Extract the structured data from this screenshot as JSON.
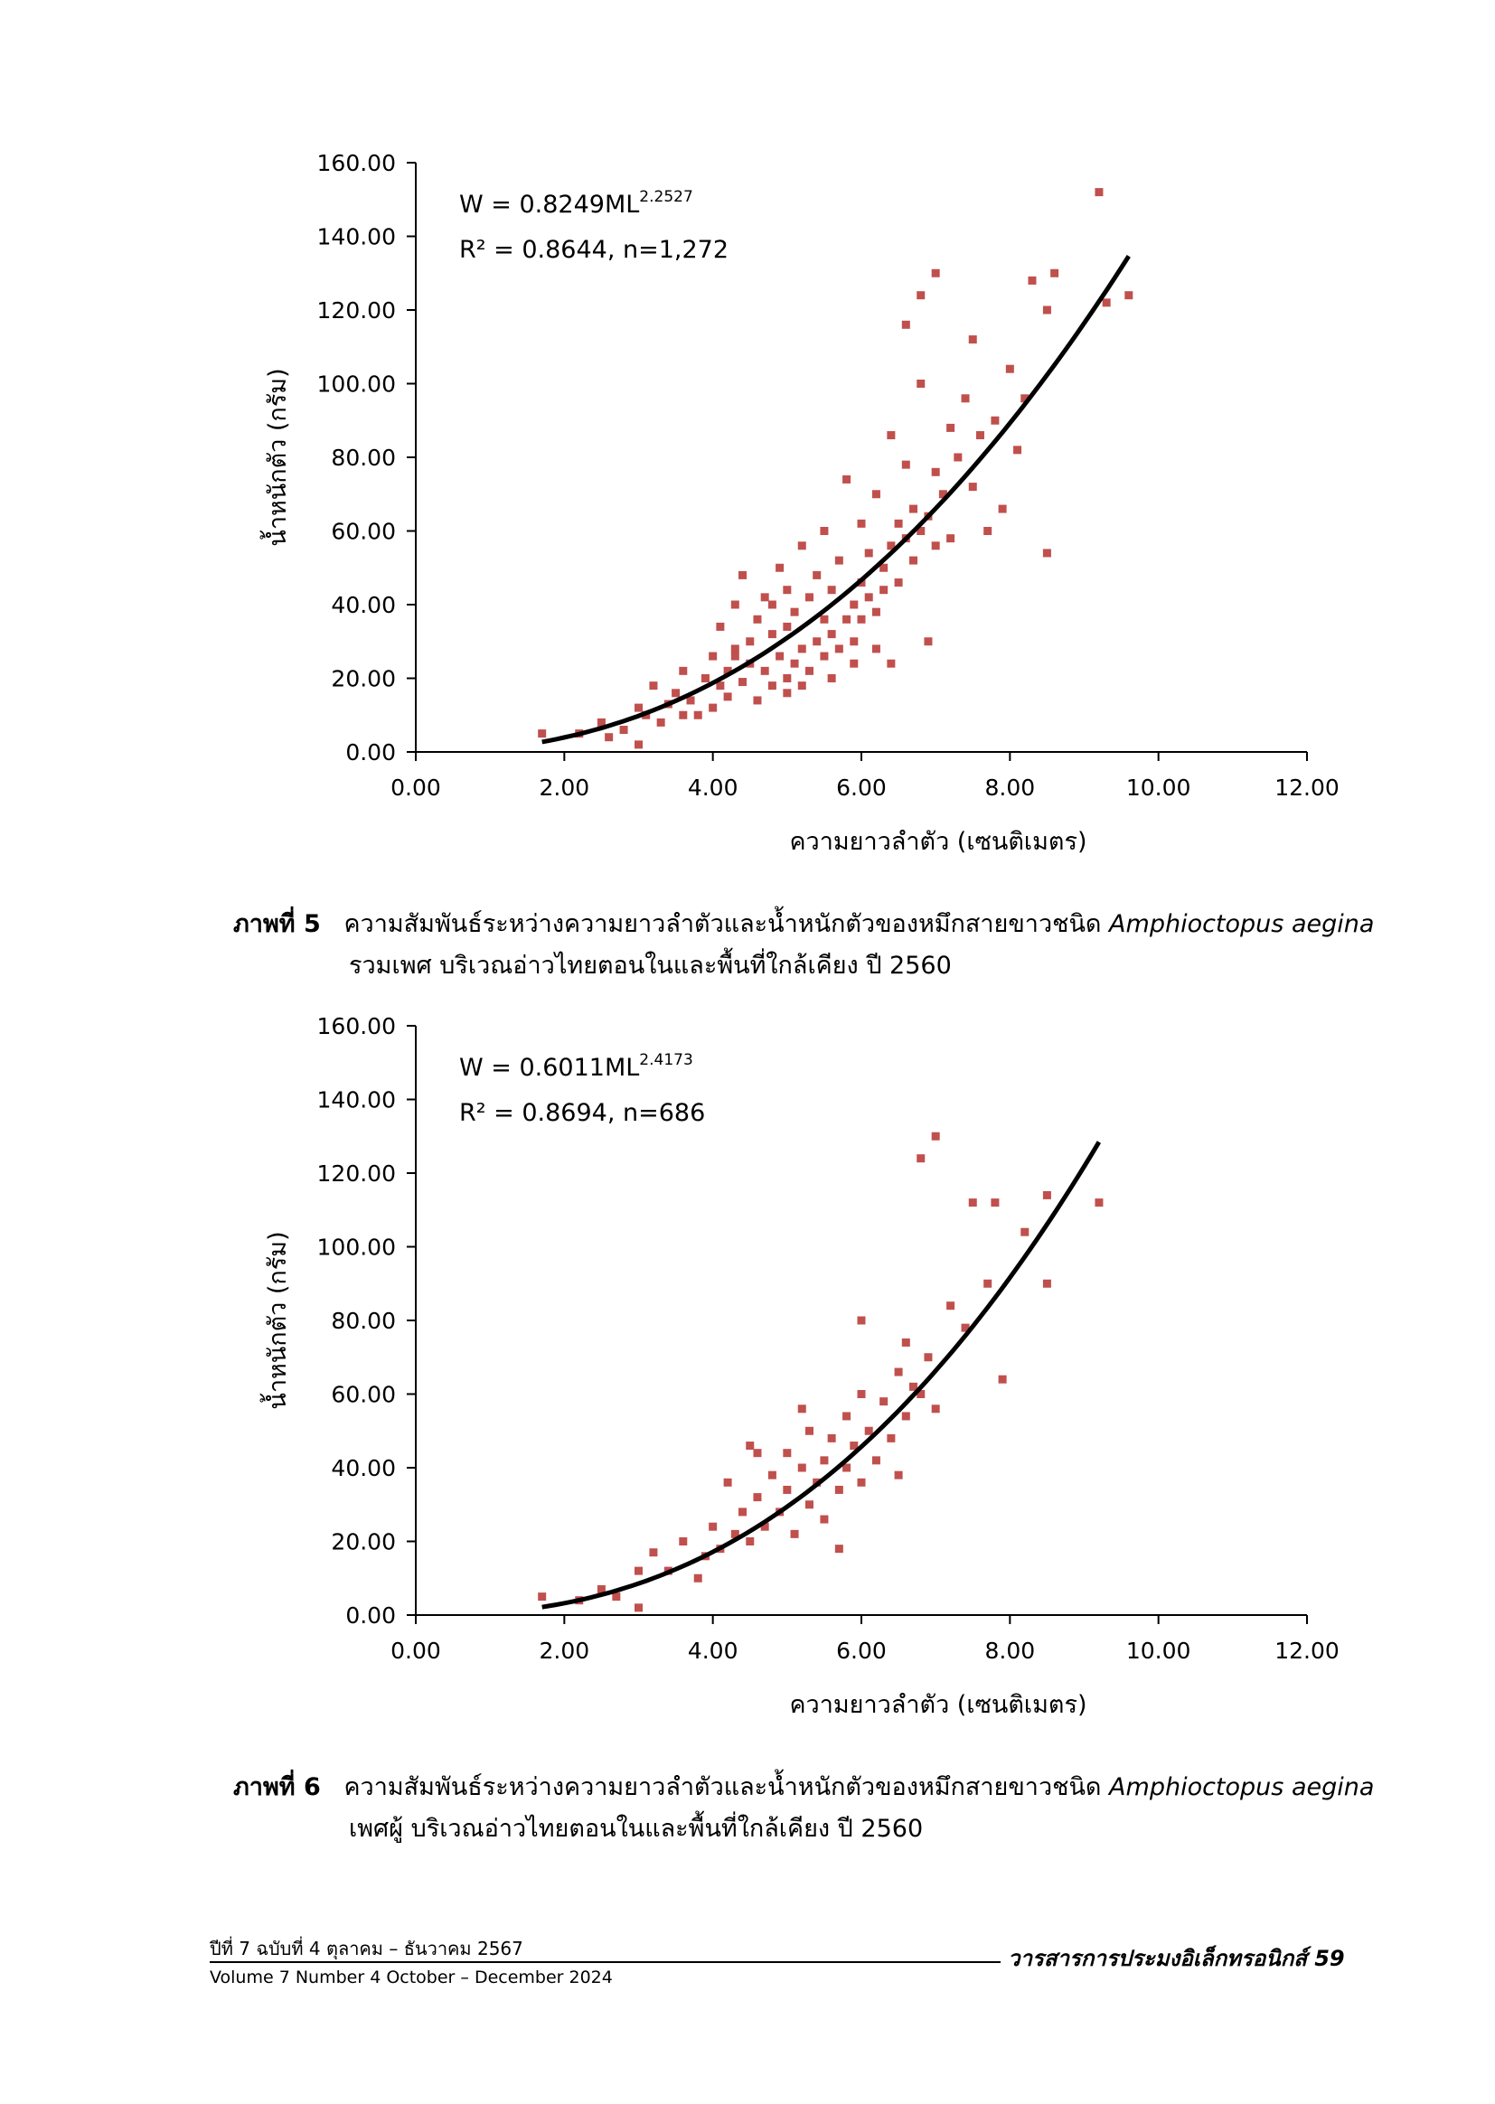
{
  "chart_data": [
    {
      "type": "scatter",
      "xlabel": "ความยาวลำตัว (เซนติเมตร)",
      "ylabel": "น้ำหนักตัว (กรัม)",
      "xlim": [
        0,
        12
      ],
      "ylim": [
        0,
        160
      ],
      "xticks": [
        "0.00",
        "2.00",
        "4.00",
        "6.00",
        "8.00",
        "10.00",
        "12.00"
      ],
      "yticks": [
        "0.00",
        "20.00",
        "40.00",
        "60.00",
        "80.00",
        "100.00",
        "120.00",
        "140.00",
        "160.00"
      ],
      "equation_main": "W = 0.8249ML",
      "equation_exp": "2.2527",
      "stats": "R² = 0.8644, n=1,272",
      "marker_color": "#c0504d",
      "line_color": "#000000",
      "series": [
        {
          "type": "scatter",
          "points": [
            [
              1.7,
              5
            ],
            [
              2.2,
              5
            ],
            [
              2.5,
              8
            ],
            [
              2.6,
              4
            ],
            [
              2.8,
              6
            ],
            [
              3.0,
              2
            ],
            [
              3.0,
              12
            ],
            [
              3.1,
              10
            ],
            [
              3.2,
              18
            ],
            [
              3.3,
              8
            ],
            [
              3.4,
              13
            ],
            [
              3.5,
              16
            ],
            [
              3.6,
              22
            ],
            [
              3.7,
              14
            ],
            [
              3.8,
              10
            ],
            [
              3.9,
              20
            ],
            [
              4.0,
              12
            ],
            [
              4.0,
              26
            ],
            [
              4.1,
              18
            ],
            [
              4.1,
              34
            ],
            [
              4.2,
              22
            ],
            [
              4.2,
              15
            ],
            [
              4.3,
              28
            ],
            [
              4.3,
              40
            ],
            [
              4.4,
              19
            ],
            [
              4.4,
              48
            ],
            [
              4.5,
              30
            ],
            [
              4.5,
              24
            ],
            [
              4.6,
              36
            ],
            [
              4.6,
              14
            ],
            [
              4.7,
              22
            ],
            [
              4.7,
              42
            ],
            [
              4.8,
              18
            ],
            [
              4.8,
              32
            ],
            [
              4.9,
              26
            ],
            [
              4.9,
              50
            ],
            [
              5.0,
              20
            ],
            [
              5.0,
              34
            ],
            [
              5.0,
              44
            ],
            [
              5.1,
              24
            ],
            [
              5.1,
              38
            ],
            [
              5.2,
              28
            ],
            [
              5.2,
              56
            ],
            [
              5.3,
              22
            ],
            [
              5.3,
              42
            ],
            [
              5.4,
              30
            ],
            [
              5.4,
              48
            ],
            [
              5.5,
              26
            ],
            [
              5.5,
              36
            ],
            [
              5.5,
              60
            ],
            [
              5.6,
              32
            ],
            [
              5.6,
              44
            ],
            [
              5.7,
              28
            ],
            [
              5.7,
              52
            ],
            [
              5.8,
              36
            ],
            [
              5.8,
              74
            ],
            [
              5.9,
              40
            ],
            [
              5.9,
              30
            ],
            [
              6.0,
              46
            ],
            [
              6.0,
              36
            ],
            [
              6.0,
              62
            ],
            [
              6.1,
              42
            ],
            [
              6.1,
              54
            ],
            [
              6.2,
              38
            ],
            [
              6.2,
              70
            ],
            [
              6.3,
              50
            ],
            [
              6.3,
              44
            ],
            [
              6.4,
              56
            ],
            [
              6.4,
              86
            ],
            [
              6.5,
              46
            ],
            [
              6.5,
              62
            ],
            [
              6.6,
              58
            ],
            [
              6.6,
              78
            ],
            [
              6.7,
              52
            ],
            [
              6.7,
              66
            ],
            [
              6.8,
              60
            ],
            [
              6.8,
              100
            ],
            [
              6.9,
              64
            ],
            [
              6.9,
              30
            ],
            [
              7.0,
              56
            ],
            [
              7.0,
              130
            ],
            [
              7.0,
              76
            ],
            [
              7.1,
              70
            ],
            [
              7.2,
              88
            ],
            [
              7.2,
              58
            ],
            [
              7.3,
              80
            ],
            [
              7.4,
              96
            ],
            [
              7.5,
              72
            ],
            [
              7.5,
              112
            ],
            [
              7.6,
              86
            ],
            [
              7.7,
              60
            ],
            [
              7.8,
              90
            ],
            [
              7.9,
              66
            ],
            [
              8.0,
              104
            ],
            [
              8.1,
              82
            ],
            [
              8.2,
              96
            ],
            [
              8.3,
              128
            ],
            [
              8.5,
              120
            ],
            [
              8.5,
              54
            ],
            [
              8.6,
              130
            ],
            [
              9.2,
              152
            ],
            [
              9.3,
              122
            ],
            [
              9.6,
              124
            ],
            [
              6.6,
              116
            ],
            [
              6.8,
              124
            ],
            [
              5.9,
              24
            ],
            [
              4.8,
              40
            ],
            [
              5.2,
              18
            ],
            [
              6.2,
              28
            ],
            [
              4.3,
              26
            ],
            [
              5.6,
              20
            ],
            [
              3.6,
              10
            ],
            [
              6.4,
              24
            ],
            [
              5.0,
              16
            ]
          ]
        }
      ],
      "curve": {
        "a": 0.8249,
        "b": 2.2527,
        "x_from": 1.7,
        "x_to": 9.6
      }
    },
    {
      "type": "scatter",
      "xlabel": "ความยาวลำตัว (เซนติเมตร)",
      "ylabel": "น้ำหนักตัว (กรัม)",
      "xlim": [
        0,
        12
      ],
      "ylim": [
        0,
        160
      ],
      "xticks": [
        "0.00",
        "2.00",
        "4.00",
        "6.00",
        "8.00",
        "10.00",
        "12.00"
      ],
      "yticks": [
        "0.00",
        "20.00",
        "40.00",
        "60.00",
        "80.00",
        "100.00",
        "120.00",
        "140.00",
        "160.00"
      ],
      "equation_main": "W = 0.6011ML",
      "equation_exp": "2.4173",
      "stats": "R² = 0.8694, n=686",
      "marker_color": "#c0504d",
      "line_color": "#000000",
      "series": [
        {
          "type": "scatter",
          "points": [
            [
              1.7,
              5
            ],
            [
              2.2,
              4
            ],
            [
              2.5,
              7
            ],
            [
              2.7,
              5
            ],
            [
              3.0,
              2
            ],
            [
              3.0,
              12
            ],
            [
              3.2,
              17
            ],
            [
              3.4,
              12
            ],
            [
              3.6,
              20
            ],
            [
              3.8,
              10
            ],
            [
              3.9,
              16
            ],
            [
              4.0,
              24
            ],
            [
              4.1,
              18
            ],
            [
              4.2,
              36
            ],
            [
              4.3,
              22
            ],
            [
              4.4,
              28
            ],
            [
              4.5,
              46
            ],
            [
              4.5,
              20
            ],
            [
              4.6,
              32
            ],
            [
              4.7,
              24
            ],
            [
              4.8,
              38
            ],
            [
              4.9,
              28
            ],
            [
              5.0,
              34
            ],
            [
              5.0,
              44
            ],
            [
              5.1,
              22
            ],
            [
              5.2,
              40
            ],
            [
              5.3,
              30
            ],
            [
              5.3,
              50
            ],
            [
              5.4,
              36
            ],
            [
              5.5,
              42
            ],
            [
              5.5,
              26
            ],
            [
              5.6,
              48
            ],
            [
              5.7,
              34
            ],
            [
              5.8,
              40
            ],
            [
              5.8,
              54
            ],
            [
              5.9,
              46
            ],
            [
              6.0,
              36
            ],
            [
              6.0,
              60
            ],
            [
              6.1,
              50
            ],
            [
              6.2,
              42
            ],
            [
              6.3,
              58
            ],
            [
              6.4,
              48
            ],
            [
              6.5,
              66
            ],
            [
              6.6,
              54
            ],
            [
              6.7,
              62
            ],
            [
              6.8,
              60
            ],
            [
              6.9,
              70
            ],
            [
              7.0,
              56
            ],
            [
              7.0,
              130
            ],
            [
              6.8,
              124
            ],
            [
              7.2,
              84
            ],
            [
              7.4,
              78
            ],
            [
              7.5,
              112
            ],
            [
              7.7,
              90
            ],
            [
              7.8,
              112
            ],
            [
              7.9,
              64
            ],
            [
              8.2,
              104
            ],
            [
              8.5,
              114
            ],
            [
              8.5,
              90
            ],
            [
              9.2,
              112
            ],
            [
              6.5,
              38
            ],
            [
              5.7,
              18
            ],
            [
              4.6,
              44
            ],
            [
              6.0,
              80
            ],
            [
              6.6,
              74
            ],
            [
              5.2,
              56
            ]
          ]
        }
      ],
      "curve": {
        "a": 0.6011,
        "b": 2.4173,
        "x_from": 1.7,
        "x_to": 9.2
      }
    }
  ],
  "captions": [
    {
      "label": "ภาพที่ 5",
      "text": "ความสัมพันธ์ระหว่างความยาวลำตัวและน้ำหนักตัวของหมึกสายขาวชนิด",
      "species": "Amphioctopus aegina",
      "line2": "รวมเพศ บริเวณอ่าวไทยตอนในและพื้นที่ใกล้เคียง ปี 2560"
    },
    {
      "label": "ภาพที่ 6",
      "text": "ความสัมพันธ์ระหว่างความยาวลำตัวและน้ำหนักตัวของหมึกสายขาวชนิด",
      "species": "Amphioctopus aegina",
      "line2": "เพศผู้ บริเวณอ่าวไทยตอนในและพื้นที่ใกล้เคียง ปี 2560"
    }
  ],
  "footer": {
    "left_th": "ปีที่ 7 ฉบับที่ 4 ตุลาคม – ธันวาคม 2567",
    "left_en": "Volume 7 Number 4 October – December 2024",
    "right": "วารสารการประมงอิเล็กทรอนิกส์ 59"
  }
}
